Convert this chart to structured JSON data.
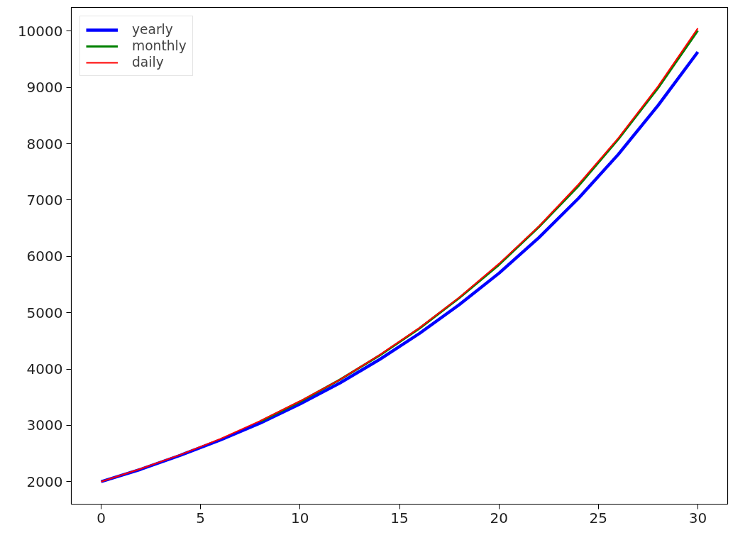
{
  "chart_data": {
    "type": "line",
    "x": [
      0,
      2,
      4,
      6,
      8,
      10,
      12,
      14,
      16,
      18,
      20,
      22,
      24,
      26,
      28,
      30
    ],
    "series": [
      {
        "name": "yearly",
        "color": "#0000ff",
        "values": [
          2000,
          2220,
          2470,
          2740,
          3040,
          3380,
          3750,
          4170,
          4630,
          5140,
          5700,
          6330,
          7030,
          7810,
          8680,
          9630
        ]
      },
      {
        "name": "monthly",
        "color": "#008000",
        "values": [
          null,
          null,
          null,
          null,
          3070,
          3420,
          3810,
          4240,
          4720,
          5260,
          5850,
          6520,
          7250,
          8080,
          8990,
          10010
        ]
      },
      {
        "name": "daily",
        "color": "#ff0000",
        "values": [
          2000,
          2230,
          2480,
          2760,
          3080,
          3430,
          3810,
          4250,
          4730,
          5270,
          5870,
          6530,
          7280,
          8100,
          9020,
          10050
        ]
      }
    ],
    "xlim": [
      -1.5,
      31.5
    ],
    "ylim": [
      1600,
      10420
    ],
    "xticks": [
      0,
      5,
      10,
      15,
      20,
      25,
      30
    ],
    "yticks": [
      2000,
      3000,
      4000,
      5000,
      6000,
      7000,
      8000,
      9000,
      10000
    ],
    "grid": false,
    "legend": "top left",
    "marker": "none",
    "line_style": "solid"
  }
}
